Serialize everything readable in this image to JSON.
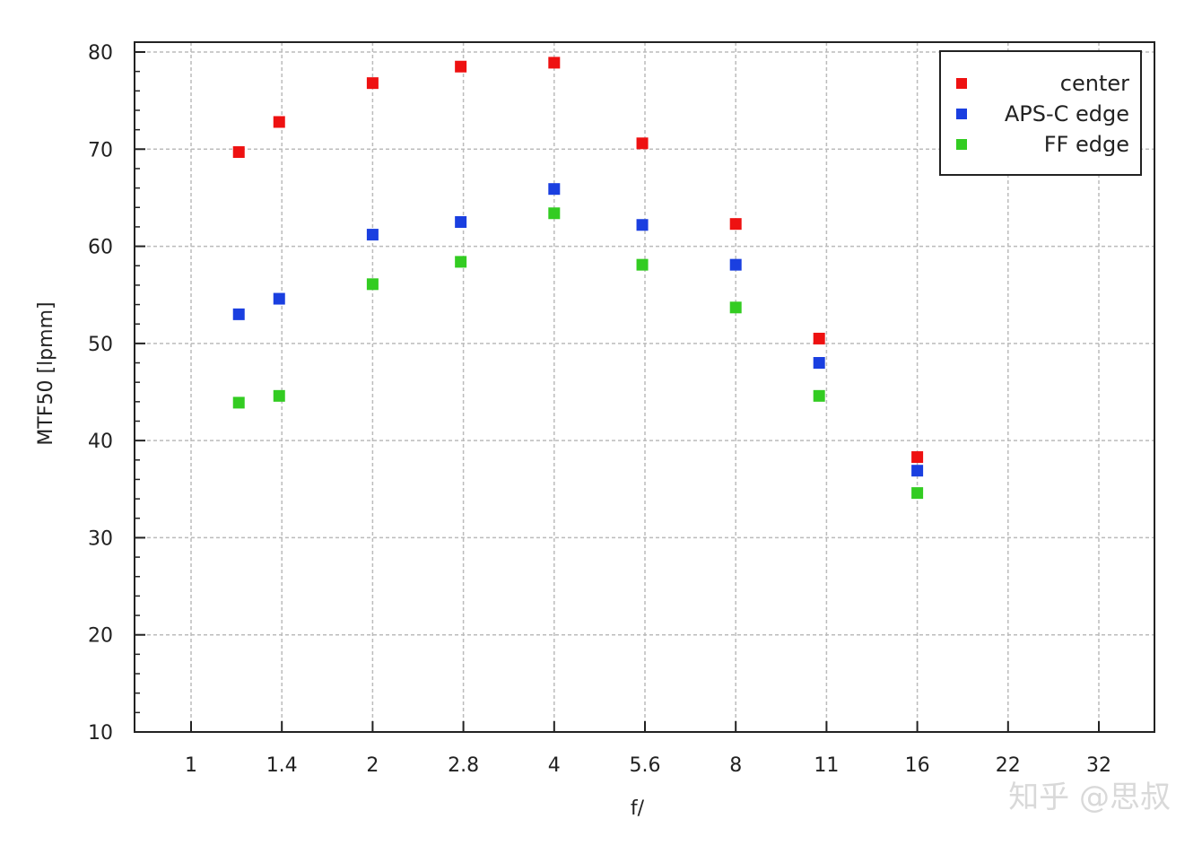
{
  "chart_data": {
    "type": "scatter",
    "xlabel": "f/",
    "ylabel": "MTF50 [lpmm]",
    "x_scale": "log",
    "x_ticks": [
      "1",
      "1.4",
      "2",
      "2.8",
      "4",
      "5.6",
      "8",
      "11",
      "16",
      "22",
      "32"
    ],
    "ylim": [
      10,
      80
    ],
    "y_ticks": [
      10,
      20,
      30,
      40,
      50,
      60,
      70,
      80
    ],
    "grid": true,
    "legend_position": "top-right",
    "x": [
      1.2,
      1.4,
      2,
      2.8,
      4,
      5.6,
      8,
      11,
      16
    ],
    "series": [
      {
        "name": "center",
        "color": "#ee1111",
        "values": [
          69.7,
          72.8,
          76.8,
          78.5,
          78.9,
          70.6,
          62.3,
          50.5,
          38.3
        ]
      },
      {
        "name": "APS-C edge",
        "color": "#1a3fe0",
        "values": [
          53.0,
          54.6,
          61.2,
          62.5,
          65.9,
          62.2,
          58.1,
          48.0,
          36.9
        ]
      },
      {
        "name": "FF edge",
        "color": "#33cc22",
        "values": [
          43.9,
          44.6,
          56.1,
          58.4,
          63.4,
          58.1,
          53.7,
          44.6,
          34.6
        ]
      }
    ]
  },
  "watermark": "知乎 @思叔"
}
